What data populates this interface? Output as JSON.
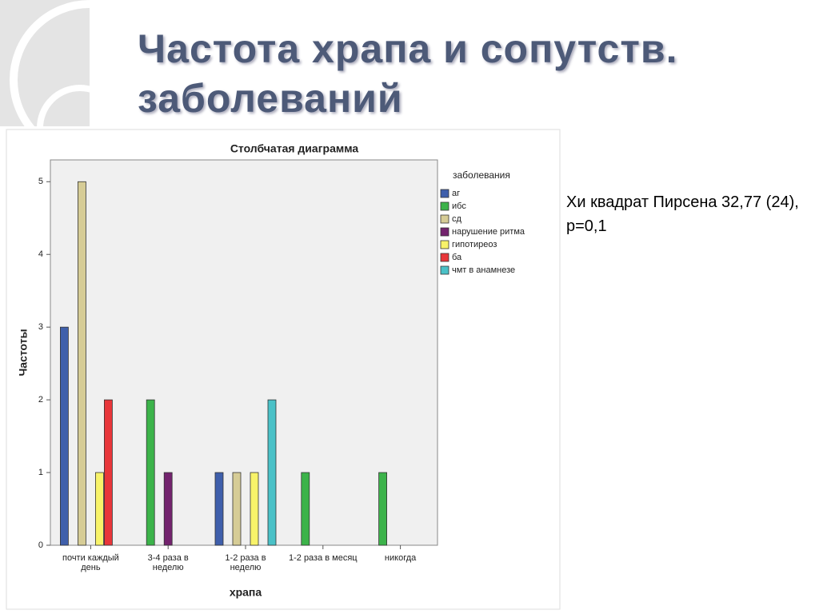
{
  "slide_title": "Частота храпа и сопутств. заболеваний",
  "note": "Хи квадрат Пирсена 32,77 (24), p=0,1",
  "chart_data": {
    "type": "bar",
    "title": "Столбчатая диаграмма",
    "x_label": "храпа",
    "y_label": "Частоты",
    "legend_title": "заболевания",
    "categories": [
      "почти каждый день",
      "3-4 раза в неделю",
      "1-2 раза в неделю",
      "1-2 раза в месяц",
      "никогда"
    ],
    "series": [
      {
        "name": "аг",
        "color": "#3f5fab",
        "values": [
          3,
          0,
          1,
          0,
          0
        ]
      },
      {
        "name": "ибс",
        "color": "#3cb34a",
        "values": [
          0,
          2,
          0,
          1,
          1
        ]
      },
      {
        "name": "сд",
        "color": "#d6cc96",
        "values": [
          5,
          0,
          1,
          0,
          0
        ]
      },
      {
        "name": "нарушение ритма",
        "color": "#73236e",
        "values": [
          0,
          1,
          0,
          0,
          0
        ]
      },
      {
        "name": "гипотиреоз",
        "color": "#f8f36a",
        "values": [
          1,
          0,
          1,
          0,
          0
        ]
      },
      {
        "name": "ба",
        "color": "#e8363a",
        "values": [
          2,
          0,
          0,
          0,
          0
        ]
      },
      {
        "name": "чмт в анамнезе",
        "color": "#4ac1c7",
        "values": [
          0,
          0,
          2,
          0,
          0
        ]
      }
    ],
    "ylim": [
      0,
      5.3
    ],
    "yticks": [
      0,
      1,
      2,
      3,
      4,
      5
    ]
  }
}
